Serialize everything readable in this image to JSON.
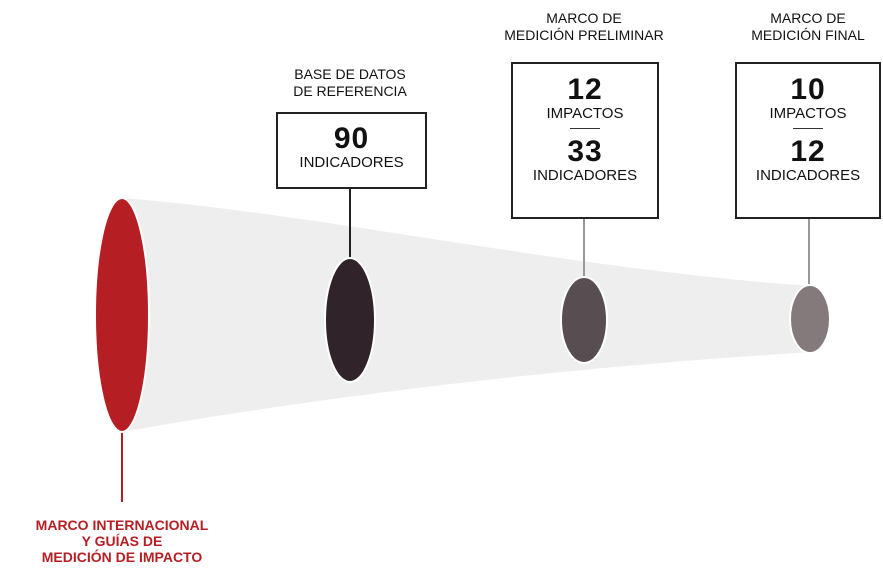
{
  "colors": {
    "accent": "#b51f24",
    "stage1": "#30242a",
    "stage2": "#584d50",
    "stage3": "#847a7b",
    "funnel": "#eeeeee"
  },
  "source": {
    "label_line1": "MARCO INTERNACIONAL",
    "label_line2": "Y GUÍAS DE",
    "label_line3": "MEDICIÓN DE IMPACTO"
  },
  "stages": [
    {
      "title_line1": "BASE DE DATOS",
      "title_line2": "DE REFERENCIA",
      "value1": "90",
      "label1": "INDICADORES"
    },
    {
      "title_line1": "MARCO DE",
      "title_line2": "MEDICIÓN PRELIMINAR",
      "value1": "12",
      "label1": "IMPACTOS",
      "value2": "33",
      "label2": "INDICADORES"
    },
    {
      "title_line1": "MARCO DE",
      "title_line2": "MEDICIÓN FINAL",
      "value1": "10",
      "label1": "IMPACTOS",
      "value2": "12",
      "label2": "INDICADORES"
    }
  ]
}
